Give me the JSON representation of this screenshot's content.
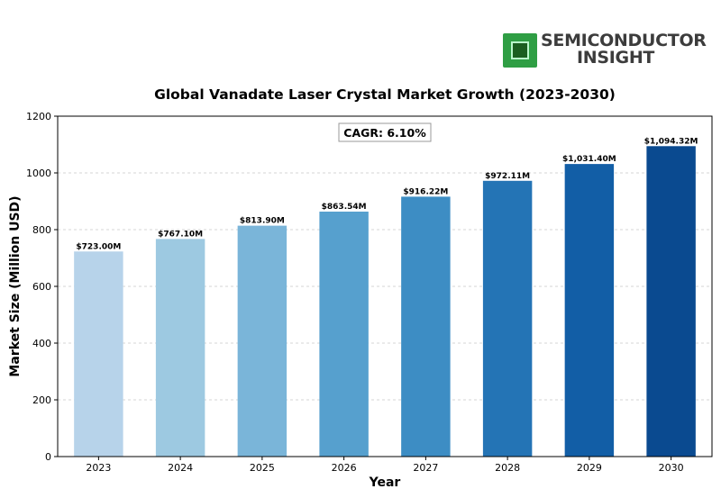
{
  "logo": {
    "line1": "SEMICONDUCTOR",
    "line2": "INSIGHT",
    "icon": "chip-icon"
  },
  "chart_data": {
    "type": "bar",
    "title": "Global Vanadate Laser Crystal Market Growth (2023-2030)",
    "xlabel": "Year",
    "ylabel": "Market Size (Million USD)",
    "categories": [
      "2023",
      "2024",
      "2025",
      "2026",
      "2027",
      "2028",
      "2029",
      "2030"
    ],
    "values": [
      723.0,
      767.1,
      813.9,
      863.54,
      916.22,
      972.11,
      1031.4,
      1094.32
    ],
    "value_labels": [
      "$723.00M",
      "$767.10M",
      "$813.90M",
      "$863.54M",
      "$916.22M",
      "$972.11M",
      "$1,031.40M",
      "$1,094.32M"
    ],
    "bar_colors": [
      "#b7d3ea",
      "#9dc9e1",
      "#7ab5d9",
      "#56a0ce",
      "#3d8dc4",
      "#2474b5",
      "#125ea6",
      "#0a4a90"
    ],
    "ylim": [
      0,
      1200
    ],
    "yticks": [
      0,
      200,
      400,
      600,
      800,
      1000,
      1200
    ],
    "grid": true,
    "annotation": "CAGR: 6.10%"
  }
}
